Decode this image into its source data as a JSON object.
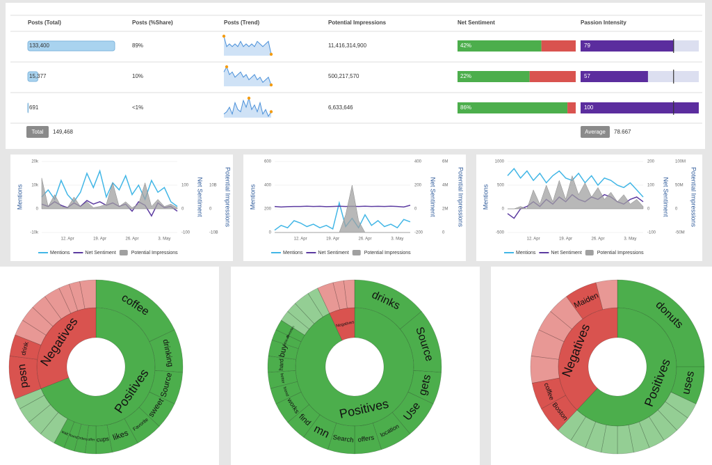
{
  "table": {
    "headers": [
      "Posts (Total)",
      "Posts (%Share)",
      "Posts (Trend)",
      "Potential Impressions",
      "Net Sentiment",
      "Passion Intensity"
    ],
    "rows": [
      {
        "posts": 133400,
        "posts_label": "133,400",
        "share": "89%",
        "trend": [
          10,
          6,
          7,
          6,
          7,
          6,
          8,
          6,
          7,
          6,
          7,
          6,
          8,
          7,
          6,
          7,
          8,
          3
        ],
        "impressions": "11,416,314,900",
        "sentiment": 42,
        "sentiment_label": "42%",
        "passion": 79
      },
      {
        "posts": 15377,
        "posts_label": "15,377",
        "share": "10%",
        "trend": [
          8,
          10,
          7,
          8,
          6,
          7,
          8,
          6,
          7,
          5,
          6,
          7,
          5,
          6,
          4,
          5,
          6,
          3
        ],
        "impressions": "500,217,570",
        "sentiment": 22,
        "sentiment_label": "22%",
        "passion": 57
      },
      {
        "posts": 691,
        "posts_label": "691",
        "share": "<1%",
        "trend": [
          3,
          4,
          6,
          3,
          8,
          5,
          4,
          9,
          6,
          10,
          5,
          7,
          4,
          8,
          3,
          5,
          2,
          4
        ],
        "impressions": "6,633,646",
        "sentiment": 86,
        "sentiment_label": "86%",
        "passion": 100
      }
    ],
    "total_label": "Total",
    "total": "149,468",
    "average_label": "Average",
    "average": 78.667
  },
  "chart_data": [
    {
      "type": "line",
      "ylabel": "Mentions",
      "y2label": "Net Sentiment",
      "y3label": "Potential Impressions",
      "categories": [
        null,
        null,
        null,
        null,
        "12. Apr",
        null,
        null,
        null,
        null,
        "19. Apr",
        null,
        null,
        null,
        null,
        "26. Apr",
        null,
        null,
        null,
        null,
        "3. May",
        null,
        null
      ],
      "ylim": [
        -10000,
        20000
      ],
      "yticks": [
        {
          "value": 20000,
          "label": "20k"
        },
        {
          "value": 10000,
          "label": "10k"
        },
        0,
        {
          "value": -10000,
          "label": "-10k"
        }
      ],
      "y2lim": [
        -100,
        200
      ],
      "y2ticks": [
        100,
        0,
        -100
      ],
      "y3lim": [
        -10000000000,
        20000000000
      ],
      "y3ticks": [
        {
          "value": 10000000000,
          "label": "10B"
        },
        0,
        {
          "value": -10000000000,
          "label": "-10B"
        }
      ],
      "series": [
        {
          "name": "Mentions",
          "color": "#41b6e6",
          "values": [
            5000,
            8000,
            4000,
            12000,
            6000,
            3000,
            7000,
            15000,
            9000,
            16000,
            5000,
            11000,
            8000,
            14000,
            6000,
            10000,
            4000,
            12000,
            7000,
            9000,
            3000,
            1000
          ]
        },
        {
          "name": "Net Sentiment",
          "color": "#5b3aa0",
          "axis": "y2",
          "values": [
            20,
            10,
            30,
            15,
            5,
            25,
            10,
            35,
            20,
            30,
            15,
            25,
            10,
            20,
            -10,
            30,
            15,
            -30,
            25,
            5,
            10,
            -10
          ]
        },
        {
          "name": "Potential Impressions",
          "color": "#a0a0a0",
          "axis": "y3",
          "type": "area",
          "values": [
            13000000000,
            1000000000,
            6000000000,
            1000000000,
            500000000,
            5000000000,
            1000000000,
            3000000000,
            500000000,
            1000000000,
            2000000000,
            11000000000,
            1000000000,
            3000000000,
            500000000,
            2000000000,
            11000000000,
            1000000000,
            4000000000,
            1000000000,
            2000000000,
            500000000
          ]
        }
      ]
    },
    {
      "type": "line",
      "ylabel": "Mentions",
      "y2label": "Net Sentiment",
      "y3label": "Potential Impressions",
      "categories": [
        null,
        null,
        null,
        null,
        "12. Apr",
        null,
        null,
        null,
        null,
        "19. Apr",
        null,
        null,
        null,
        null,
        "26. Apr",
        null,
        null,
        null,
        null,
        "3. May",
        null,
        null
      ],
      "ylim": [
        0,
        600
      ],
      "yticks": [
        600,
        400,
        200,
        0
      ],
      "y2lim": [
        -200,
        400
      ],
      "y2ticks": [
        400,
        200,
        0,
        -200
      ],
      "y3lim": [
        0,
        6000000
      ],
      "y3ticks": [
        {
          "value": 6000000,
          "label": "6M"
        },
        {
          "value": 4000000,
          "label": "4M"
        },
        {
          "value": 2000000,
          "label": "2M"
        },
        0
      ],
      "series": [
        {
          "name": "Mentions",
          "color": "#41b6e6",
          "values": [
            20,
            60,
            40,
            100,
            80,
            50,
            70,
            40,
            60,
            30,
            250,
            50,
            120,
            40,
            150,
            60,
            100,
            50,
            70,
            40,
            110,
            90
          ]
        },
        {
          "name": "Net Sentiment",
          "color": "#5b3aa0",
          "axis": "y2",
          "values": [
            20,
            15,
            18,
            20,
            20,
            22,
            20,
            21,
            18,
            20,
            22,
            20,
            21,
            20,
            22,
            20,
            21,
            20,
            22,
            20,
            15,
            30
          ]
        },
        {
          "name": "Potential Impressions",
          "color": "#a0a0a0",
          "axis": "y3",
          "type": "area",
          "values": [
            0,
            0,
            0,
            0,
            0,
            0,
            0,
            0,
            0,
            0,
            0,
            1500000,
            4000000,
            1000000,
            0,
            0,
            0,
            0,
            0,
            0,
            0,
            0
          ]
        }
      ]
    },
    {
      "type": "line",
      "ylabel": "Mentions",
      "y2label": "Net Sentiment",
      "y3label": "Potential Impressions",
      "categories": [
        null,
        null,
        null,
        null,
        "12. Apr",
        null,
        null,
        null,
        null,
        "19. Apr",
        null,
        null,
        null,
        null,
        "26. Apr",
        null,
        null,
        null,
        null,
        "3. May",
        null,
        null
      ],
      "ylim": [
        -500,
        1000
      ],
      "yticks": [
        1000,
        500,
        0,
        -500
      ],
      "y2lim": [
        -100,
        200
      ],
      "y2ticks": [
        200,
        100,
        0,
        -100
      ],
      "y3lim": [
        -50000000,
        100000000
      ],
      "y3ticks": [
        {
          "value": 100000000,
          "label": "100M"
        },
        {
          "value": 50000000,
          "label": "50M"
        },
        0,
        {
          "value": -50000000,
          "label": "-50M"
        }
      ],
      "series": [
        {
          "name": "Mentions",
          "color": "#41b6e6",
          "values": [
            700,
            850,
            650,
            800,
            600,
            750,
            550,
            700,
            800,
            650,
            600,
            750,
            550,
            700,
            500,
            650,
            600,
            500,
            450,
            550,
            400,
            250
          ]
        },
        {
          "name": "Net Sentiment",
          "color": "#5b3aa0",
          "axis": "y2",
          "values": [
            -20,
            -40,
            0,
            10,
            30,
            10,
            40,
            20,
            50,
            30,
            60,
            40,
            30,
            50,
            40,
            60,
            50,
            30,
            20,
            40,
            50,
            30
          ]
        },
        {
          "name": "Potential Impressions",
          "color": "#a0a0a0",
          "axis": "y3",
          "type": "area",
          "values": [
            0,
            0,
            5000000,
            0,
            40000000,
            10000000,
            50000000,
            15000000,
            60000000,
            20000000,
            70000000,
            30000000,
            55000000,
            25000000,
            45000000,
            20000000,
            35000000,
            15000000,
            30000000,
            10000000,
            20000000,
            5000000
          ]
        }
      ]
    },
    {
      "type": "sunburst",
      "categories": [
        "Positives",
        "Negatives"
      ],
      "colors": [
        "#4cae4c",
        "#d9534f"
      ],
      "values": [
        69,
        31
      ],
      "children": [
        {
          "labels": [
            "coffee",
            "drinking",
            "Source",
            "sweet",
            "Favorite",
            "likes",
            "cups",
            "offer",
            "Orders",
            "found",
            "wait",
            null,
            null,
            null,
            null
          ],
          "values": [
            18,
            8,
            6,
            5,
            5,
            5,
            3,
            2,
            2,
            2,
            2,
            3,
            3,
            3,
            2
          ]
        },
        {
          "labels": [
            "used",
            "drink",
            null,
            null,
            null,
            null,
            null,
            null,
            null
          ],
          "values": [
            8,
            4,
            3,
            3,
            3,
            3,
            2,
            2,
            3
          ]
        }
      ]
    },
    {
      "type": "sunburst",
      "categories": [
        "Positives",
        "Negatives"
      ],
      "colors": [
        "#4cae4c",
        "#d9534f"
      ],
      "values": [
        93,
        7
      ],
      "children": [
        {
          "labels": [
            "drinks",
            "Source",
            "gets",
            "Use",
            "location",
            "offers",
            "Search",
            "mn",
            "find",
            "works",
            "friend",
            "better",
            "hard",
            "buy",
            "ethically",
            "favorites",
            null,
            null,
            null,
            null
          ],
          "values": [
            14,
            12,
            6,
            7,
            6,
            5,
            5,
            5,
            4,
            4,
            3,
            3,
            3,
            3,
            2,
            2,
            2,
            2,
            3,
            2
          ]
        },
        {
          "labels": [
            null,
            null,
            null
          ],
          "values": [
            3,
            2,
            2
          ]
        }
      ]
    },
    {
      "type": "sunburst",
      "categories": [
        "Positives",
        "Negatives"
      ],
      "colors": [
        "#4cae4c",
        "#d9534f"
      ],
      "values": [
        62,
        38
      ],
      "children": [
        {
          "labels": [
            "donuts",
            "uses",
            null,
            null,
            null,
            null,
            null,
            null,
            null,
            null,
            null,
            null
          ],
          "values": [
            25,
            7,
            3,
            3,
            3,
            3,
            3,
            3,
            3,
            3,
            3,
            3
          ]
        },
        {
          "labels": [
            "Boston",
            "coffee",
            null,
            null,
            null,
            null,
            "Maiden",
            null
          ],
          "values": [
            5,
            5,
            5,
            5,
            4,
            4,
            6,
            4
          ]
        }
      ]
    }
  ]
}
